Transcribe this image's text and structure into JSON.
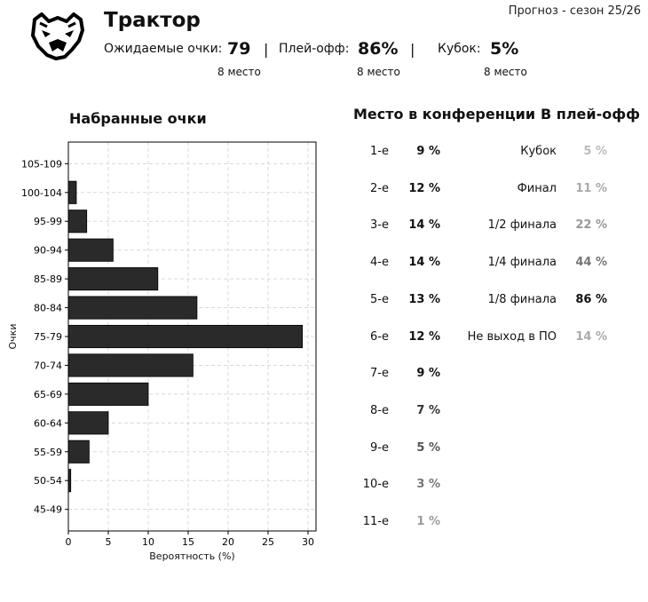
{
  "header": {
    "season": "Прогноз - сезон 25/26",
    "team_name": "Трактор",
    "logo_icon": "bear-head-icon",
    "stats": [
      {
        "label": "Ожидаемые очки:",
        "value": "79",
        "rank": "8 место"
      },
      {
        "label": "Плей-офф:",
        "value": "86%",
        "rank": "8 место"
      },
      {
        "label": "Кубок:",
        "value": "5%",
        "rank": "8 место"
      }
    ],
    "separator": "|"
  },
  "chart_data": {
    "type": "bar",
    "orientation": "horizontal",
    "title": "Набранные очки",
    "xlabel": "Вероятность (%)",
    "ylabel": "Очки",
    "xlim": [
      0,
      31
    ],
    "xticks": [
      "0",
      "5",
      "10",
      "15",
      "20",
      "25",
      "30"
    ],
    "grid": true,
    "bar_color": "#2a2a2a",
    "categories": [
      "105-109",
      "100-104",
      "95-99",
      "90-94",
      "85-89",
      "80-84",
      "75-79",
      "70-74",
      "65-69",
      "60-64",
      "55-59",
      "50-54",
      "45-49"
    ],
    "values": [
      0,
      1.0,
      2.3,
      5.6,
      11.2,
      16.1,
      29.3,
      15.6,
      10.0,
      5.0,
      2.6,
      0.3,
      0
    ]
  },
  "conference": {
    "title": "Место в конференции",
    "rows": [
      {
        "place": "1-е",
        "value": "9 %",
        "shade": "#111111"
      },
      {
        "place": "2-е",
        "value": "12 %",
        "shade": "#111111"
      },
      {
        "place": "3-е",
        "value": "14 %",
        "shade": "#111111"
      },
      {
        "place": "4-е",
        "value": "14 %",
        "shade": "#111111"
      },
      {
        "place": "5-е",
        "value": "13 %",
        "shade": "#111111"
      },
      {
        "place": "6-е",
        "value": "12 %",
        "shade": "#111111"
      },
      {
        "place": "7-е",
        "value": "9 %",
        "shade": "#111111"
      },
      {
        "place": "8-е",
        "value": "7 %",
        "shade": "#333333"
      },
      {
        "place": "9-е",
        "value": "5 %",
        "shade": "#555555"
      },
      {
        "place": "10-е",
        "value": "3 %",
        "shade": "#777777"
      },
      {
        "place": "11-е",
        "value": "1 %",
        "shade": "#999999"
      }
    ]
  },
  "playoff": {
    "title": "В плей-офф",
    "rows": [
      {
        "stage": "Кубок",
        "value": "5 %",
        "shade": "#bbbbbb"
      },
      {
        "stage": "Финал",
        "value": "11 %",
        "shade": "#aaaaaa"
      },
      {
        "stage": "1/2 финала",
        "value": "22 %",
        "shade": "#999999"
      },
      {
        "stage": "1/4 финала",
        "value": "44 %",
        "shade": "#777777"
      },
      {
        "stage": "1/8 финала",
        "value": "86 %",
        "shade": "#111111"
      },
      {
        "stage": "Не выход в ПО",
        "value": "14 %",
        "shade": "#aaaaaa"
      }
    ]
  }
}
